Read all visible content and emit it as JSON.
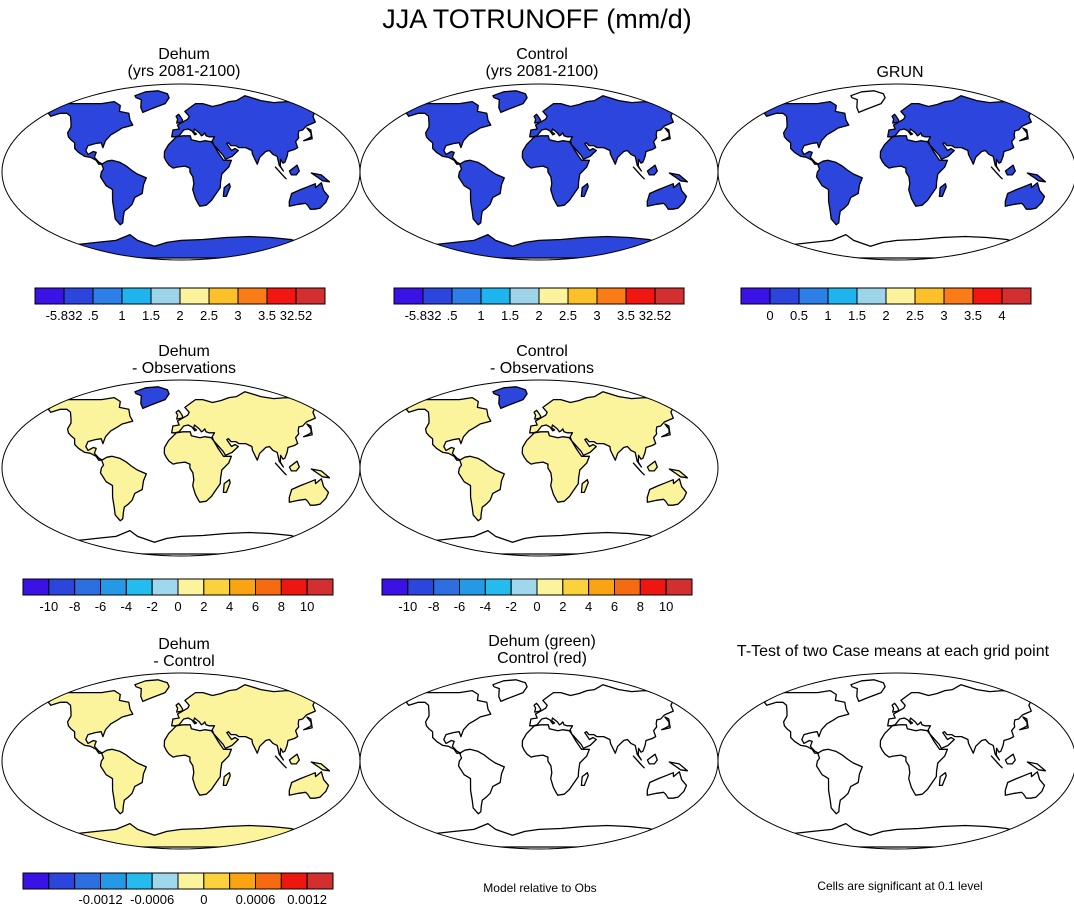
{
  "title": "JJA TOTRUNOFF (mm/d)",
  "colors": {
    "seq": [
      "#3a12e6",
      "#2c45dc",
      "#2d7ee6",
      "#20b4ee",
      "#9ed4ea",
      "#fbf49c",
      "#fcc02a",
      "#f97c16",
      "#f1160f",
      "#d23030"
    ],
    "div": [
      "#3a12e6",
      "#2c45dc",
      "#2d6ee0",
      "#2598e6",
      "#24bbef",
      "#9fd7ec",
      "#fbf49c",
      "#fcd23c",
      "#faa414",
      "#f66a12",
      "#ee170f",
      "#d23030"
    ],
    "outline": "#000000"
  },
  "panels": [
    {
      "id": "dehum",
      "title1": "Dehum",
      "title2": "(yrs 2081-2100)",
      "fill": "runoff"
    },
    {
      "id": "control",
      "title1": "Control",
      "title2": "(yrs 2081-2100)",
      "fill": "runoff"
    },
    {
      "id": "grun",
      "title1": "GRUN",
      "title2": "",
      "fill": "runoff-obs"
    },
    {
      "id": "dehum-obs",
      "title1": "Dehum",
      "title2": "- Observations",
      "fill": "anom"
    },
    {
      "id": "control-obs",
      "title1": "Control",
      "title2": "- Observations",
      "fill": "anom"
    },
    {
      "id": "dehum-control",
      "title1": "Dehum",
      "title2": "- Control",
      "fill": "diff"
    },
    {
      "id": "taylor",
      "title1": "Dehum (green)",
      "title2": "Control (red)",
      "fill": "none"
    },
    {
      "id": "ttest",
      "title1": "T-Test of two Case means at each grid point",
      "title2": "",
      "fill": "none"
    }
  ],
  "colorbars": [
    {
      "id": "cb-dehum",
      "labels": [
        "-5.832",
        ".5",
        "1",
        "1.5",
        "2",
        "2.5",
        "3",
        "3.5",
        "32.52"
      ]
    },
    {
      "id": "cb-control",
      "labels": [
        "-5.832",
        ".5",
        "1",
        "1.5",
        "2",
        "2.5",
        "3",
        "3.5",
        "32.52"
      ]
    },
    {
      "id": "cb-grun",
      "labels": [
        "0",
        "0.5",
        "1",
        "1.5",
        "2",
        "2.5",
        "3",
        "3.5",
        "4"
      ]
    },
    {
      "id": "cb-dehum-obs",
      "labels": [
        "-10",
        "-8",
        "-6",
        "-4",
        "-2",
        "0",
        "2",
        "4",
        "6",
        "8",
        "10"
      ]
    },
    {
      "id": "cb-control-obs",
      "labels": [
        "-10",
        "-8",
        "-6",
        "-4",
        "-2",
        "0",
        "2",
        "4",
        "6",
        "8",
        "10"
      ]
    },
    {
      "id": "cb-dehum-control",
      "labels": [
        "-0.0012",
        "-0.0006",
        "0",
        "0.0006",
        "0.0012"
      ]
    }
  ],
  "notes": {
    "model_relative": "Model relative to Obs",
    "cells_significant": "Cells are significant at 0.1 level"
  }
}
